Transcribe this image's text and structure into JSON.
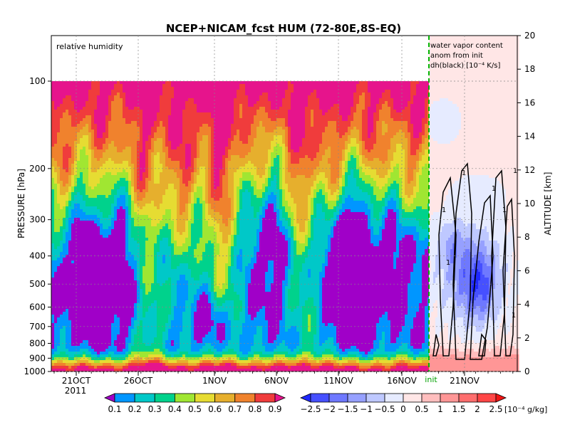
{
  "chart_data": [
    {
      "type": "heatmap",
      "title": "NCEP+NICAM_fcst HUM (72-80E,8S-EQ)",
      "panel_label": "relative humidity",
      "ylabel_left": "PRESSURE [hPa]",
      "ylabel_right": "ALTITUDE [km]",
      "pressure_ticks": [
        "100",
        "200",
        "300",
        "400",
        "500",
        "600",
        "700",
        "800",
        "900",
        "1000"
      ],
      "pressure_values": [
        100,
        200,
        300,
        400,
        500,
        600,
        700,
        800,
        900,
        1000
      ],
      "altitude_ticks": [
        "0",
        "2",
        "4",
        "6",
        "8",
        "10",
        "12",
        "14",
        "16",
        "18",
        "20"
      ],
      "altitude_values": [
        0,
        2,
        4,
        6,
        8,
        10,
        12,
        14,
        16,
        18,
        20
      ],
      "time_ticks": [
        "21OCT",
        "26OCT",
        "1NOV",
        "6NOV",
        "11NOV",
        "16NOV",
        "21NOV"
      ],
      "year_label": "2011",
      "init_label": "init",
      "ylim_pressure": [
        1000,
        100
      ],
      "ylim_altitude": [
        0,
        20
      ],
      "grid": true
    },
    {
      "type": "heatmap",
      "panel_label_lines": [
        "water vapor content",
        "anom from init",
        "dh(black) [10⁻⁴ K/s]"
      ],
      "contour_label": "1"
    }
  ],
  "colorbar_rh": {
    "labels": [
      "0.1",
      "0.2",
      "0.3",
      "0.4",
      "0.5",
      "0.6",
      "0.7",
      "0.8",
      "0.9"
    ],
    "colors": [
      "#a000c8",
      "#0096ff",
      "#00c8c8",
      "#00d28c",
      "#a0e632",
      "#e6dc32",
      "#e6af2d",
      "#f0822d",
      "#f03c3c",
      "#e6148c"
    ]
  },
  "colorbar_anom": {
    "labels": [
      "−2.5",
      "−2",
      "−1.5",
      "−1",
      "−0.5",
      "0",
      "0.5",
      "1",
      "1.5",
      "2",
      "2.5"
    ],
    "unit": "[10⁻⁴ g/kg]",
    "colors": [
      "#1e28ff",
      "#4650ff",
      "#6e78ff",
      "#96a0ff",
      "#bec8ff",
      "#e6ebff",
      "#ffe6e6",
      "#ffbebe",
      "#ff9696",
      "#ff6e6e",
      "#ff4646",
      "#f01414"
    ]
  }
}
